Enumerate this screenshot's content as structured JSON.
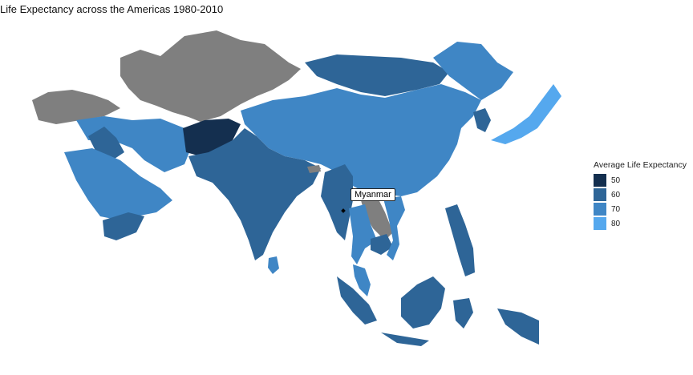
{
  "title": "Life Expectancy across the Americas 1980-2010",
  "legend": {
    "title": "Average Life Expectancy",
    "items": [
      {
        "label": "50",
        "color": "#142f4f"
      },
      {
        "label": "60",
        "color": "#2e6597"
      },
      {
        "label": "70",
        "color": "#3f86c5"
      },
      {
        "label": "80",
        "color": "#55a8ee"
      }
    ]
  },
  "colors": {
    "no_data": "#7f7f7f"
  },
  "tooltip": {
    "label": "Myanmar"
  }
}
